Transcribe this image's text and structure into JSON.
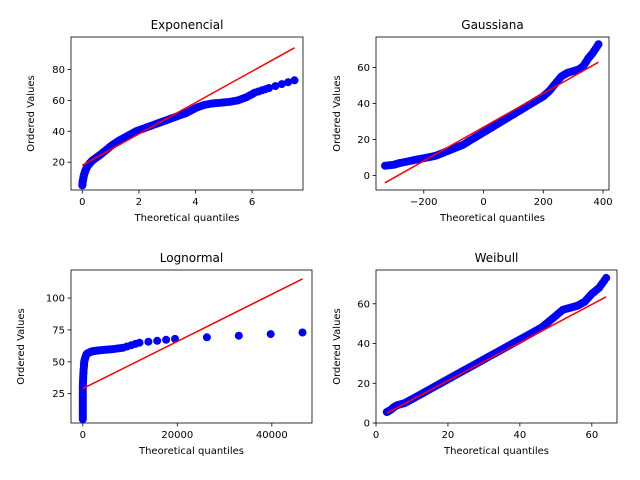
{
  "chart_data": [
    {
      "type": "scatter",
      "title": "Exponencial",
      "xlabel": "Theoretical quantiles",
      "ylabel": "Ordered Values",
      "xlim": [
        -0.4,
        7.8
      ],
      "ylim": [
        2,
        101
      ],
      "xticks": [
        0,
        2,
        4,
        6
      ],
      "yticks": [
        20,
        40,
        60,
        80
      ],
      "grid": false,
      "series": [
        {
          "kind": "points",
          "color": "#0000ff",
          "points": [
            [
              0.0,
              5
            ],
            [
              0.01,
              7
            ],
            [
              0.03,
              9
            ],
            [
              0.05,
              11
            ],
            [
              0.08,
              13
            ],
            [
              0.12,
              15
            ],
            [
              0.17,
              17
            ],
            [
              0.25,
              19
            ],
            [
              0.35,
              21
            ],
            [
              0.5,
              23
            ],
            [
              0.65,
              25
            ],
            [
              0.85,
              28
            ],
            [
              1.05,
              31
            ],
            [
              1.3,
              34
            ],
            [
              1.6,
              37
            ],
            [
              1.9,
              40
            ],
            [
              2.2,
              42
            ],
            [
              2.5,
              44
            ],
            [
              2.8,
              46
            ],
            [
              3.1,
              48
            ],
            [
              3.4,
              50
            ],
            [
              3.7,
              52
            ],
            [
              4.0,
              55
            ],
            [
              4.3,
              57
            ],
            [
              4.6,
              58
            ],
            [
              4.9,
              58.5
            ],
            [
              5.2,
              59
            ],
            [
              5.5,
              60
            ],
            [
              5.8,
              62
            ],
            [
              6.1,
              65
            ],
            [
              6.6,
              68
            ],
            [
              7.5,
              73
            ]
          ]
        },
        {
          "kind": "line",
          "color": "#ff0000",
          "points": [
            [
              0,
              18
            ],
            [
              7.5,
              94
            ]
          ]
        }
      ]
    },
    {
      "type": "scatter",
      "title": "Gaussiana",
      "xlabel": "Theoretical quantiles",
      "ylabel": "Ordered Values",
      "xlim": [
        -360,
        420
      ],
      "ylim": [
        -8,
        77
      ],
      "xticks": [
        -200,
        0,
        200,
        400
      ],
      "yticks": [
        0,
        20,
        40,
        60
      ],
      "grid": false,
      "series": [
        {
          "kind": "points",
          "color": "#0000ff",
          "points": [
            [
              -330,
              5.5
            ],
            [
              -300,
              6
            ],
            [
              -280,
              7
            ],
            [
              -250,
              8
            ],
            [
              -220,
              9
            ],
            [
              -190,
              10
            ],
            [
              -160,
              11
            ],
            [
              -130,
              13
            ],
            [
              -100,
              15
            ],
            [
              -70,
              17
            ],
            [
              -40,
              20
            ],
            [
              -10,
              23
            ],
            [
              20,
              26
            ],
            [
              50,
              29
            ],
            [
              80,
              32
            ],
            [
              110,
              35
            ],
            [
              140,
              38
            ],
            [
              170,
              41
            ],
            [
              200,
              44
            ],
            [
              220,
              47
            ],
            [
              240,
              51
            ],
            [
              260,
              55
            ],
            [
              280,
              57
            ],
            [
              300,
              58
            ],
            [
              320,
              59
            ],
            [
              335,
              61
            ],
            [
              350,
              65
            ],
            [
              365,
              68
            ],
            [
              385,
              73
            ]
          ]
        },
        {
          "kind": "line",
          "color": "#ff0000",
          "points": [
            [
              -330,
              -4
            ],
            [
              385,
              63
            ]
          ]
        }
      ]
    },
    {
      "type": "scatter",
      "title": "Lognormal",
      "xlabel": "Theoretical quantiles",
      "ylabel": "Ordered Values",
      "xlim": [
        -2500,
        48500
      ],
      "ylim": [
        2,
        122
      ],
      "xticks": [
        0,
        20000,
        40000
      ],
      "yticks": [
        25,
        50,
        75,
        100
      ],
      "grid": false,
      "series": [
        {
          "kind": "points",
          "color": "#0000ff",
          "points": [
            [
              0,
              5
            ],
            [
              0,
              10
            ],
            [
              0,
              15
            ],
            [
              0,
              20
            ],
            [
              0,
              25
            ],
            [
              0,
              30
            ],
            [
              50,
              35
            ],
            [
              100,
              40
            ],
            [
              200,
              45
            ],
            [
              300,
              50
            ],
            [
              500,
              53
            ],
            [
              800,
              56
            ],
            [
              1200,
              57
            ],
            [
              1800,
              58
            ],
            [
              2500,
              58.5
            ],
            [
              3500,
              59
            ],
            [
              5000,
              59.5
            ],
            [
              6500,
              60
            ],
            [
              8500,
              61
            ],
            [
              12000,
              65
            ],
            [
              19500,
              68
            ],
            [
              46500,
              73
            ]
          ]
        },
        {
          "kind": "line",
          "color": "#ff0000",
          "points": [
            [
              0,
              29
            ],
            [
              46500,
              115
            ]
          ]
        }
      ]
    },
    {
      "type": "scatter",
      "title": "Weibull",
      "xlabel": "Theoretical quantiles",
      "ylabel": "Ordered Values",
      "xlim": [
        0,
        67
      ],
      "ylim": [
        0,
        77
      ],
      "xticks": [
        0,
        20,
        40,
        60
      ],
      "yticks": [
        0,
        20,
        40,
        60
      ],
      "grid": false,
      "series": [
        {
          "kind": "points",
          "color": "#0000ff",
          "points": [
            [
              3,
              5.5
            ],
            [
              4,
              6.5
            ],
            [
              5,
              8
            ],
            [
              6,
              9
            ],
            [
              8,
              10
            ],
            [
              10,
              12
            ],
            [
              12,
              14
            ],
            [
              14,
              16
            ],
            [
              16,
              18
            ],
            [
              18,
              20
            ],
            [
              20,
              22
            ],
            [
              22,
              24
            ],
            [
              24,
              26
            ],
            [
              26,
              28
            ],
            [
              28,
              30
            ],
            [
              30,
              32
            ],
            [
              32,
              34
            ],
            [
              34,
              36
            ],
            [
              36,
              38
            ],
            [
              38,
              40
            ],
            [
              40,
              42
            ],
            [
              42,
              44
            ],
            [
              44,
              46
            ],
            [
              46,
              48
            ],
            [
              48,
              51
            ],
            [
              50,
              54
            ],
            [
              52,
              57
            ],
            [
              54,
              58
            ],
            [
              56,
              59
            ],
            [
              58,
              61
            ],
            [
              60,
              65
            ],
            [
              62,
              68
            ],
            [
              64,
              73
            ]
          ]
        },
        {
          "kind": "line",
          "color": "#ff0000",
          "points": [
            [
              3,
              5
            ],
            [
              64,
              63.5
            ]
          ]
        }
      ]
    }
  ]
}
